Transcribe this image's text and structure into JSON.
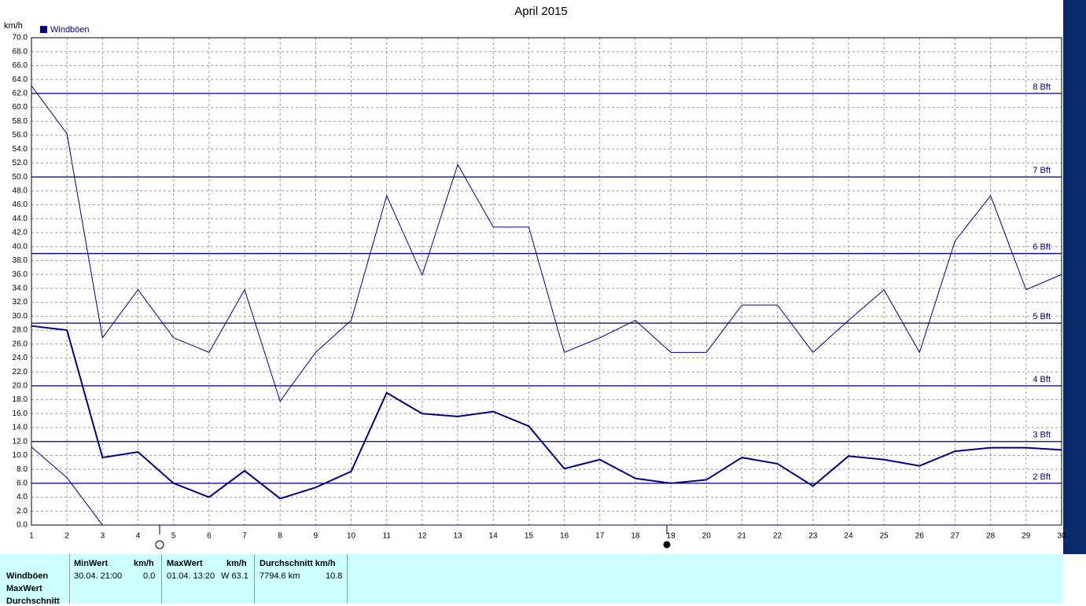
{
  "chart_data": {
    "type": "line",
    "title": "April 2015",
    "y_label": "km/h",
    "legend": "Windböen",
    "legend_color": "#000080",
    "x": [
      1,
      2,
      3,
      4,
      5,
      6,
      7,
      8,
      9,
      10,
      11,
      12,
      13,
      14,
      15,
      16,
      17,
      18,
      19,
      20,
      21,
      22,
      23,
      24,
      25,
      26,
      27,
      28,
      29,
      30
    ],
    "xlim": [
      1,
      30
    ],
    "xticks": [
      1,
      2,
      3,
      4,
      5,
      6,
      7,
      8,
      9,
      10,
      11,
      12,
      13,
      14,
      15,
      16,
      17,
      18,
      19,
      20,
      21,
      22,
      23,
      24,
      25,
      26,
      27,
      28,
      29,
      30
    ],
    "ylim": [
      0,
      70
    ],
    "yticks": [
      {
        "value": 0,
        "label": "0.0"
      },
      {
        "value": 2,
        "label": "2.0"
      },
      {
        "value": 4,
        "label": "4.0"
      },
      {
        "value": 6,
        "label": "6.0"
      },
      {
        "value": 8,
        "label": "8.0"
      },
      {
        "value": 10,
        "label": "10.0"
      },
      {
        "value": 12,
        "label": "12.0"
      },
      {
        "value": 14,
        "label": "14.0"
      },
      {
        "value": 16,
        "label": "16.0"
      },
      {
        "value": 18,
        "label": "18.0"
      },
      {
        "value": 20,
        "label": "20.0"
      },
      {
        "value": 22,
        "label": "22.0"
      },
      {
        "value": 24,
        "label": "24.0"
      },
      {
        "value": 26,
        "label": "26.0"
      },
      {
        "value": 28,
        "label": "28.0"
      },
      {
        "value": 30,
        "label": "30.0"
      },
      {
        "value": 32,
        "label": "32.0"
      },
      {
        "value": 34,
        "label": "34.0"
      },
      {
        "value": 36,
        "label": "36.0"
      },
      {
        "value": 38,
        "label": "38.0"
      },
      {
        "value": 40,
        "label": "40.0"
      },
      {
        "value": 42,
        "label": "42.0"
      },
      {
        "value": 44,
        "label": "44.0"
      },
      {
        "value": 46,
        "label": "46.0"
      },
      {
        "value": 48,
        "label": "48.0"
      },
      {
        "value": 50,
        "label": "50.0"
      },
      {
        "value": 52,
        "label": "52.0"
      },
      {
        "value": 54,
        "label": "54.0"
      },
      {
        "value": 56,
        "label": "56.0"
      },
      {
        "value": 58,
        "label": "58.0"
      },
      {
        "value": 60,
        "label": "60.0"
      },
      {
        "value": 62,
        "label": "62.0"
      },
      {
        "value": 64,
        "label": "64.0"
      },
      {
        "value": 66,
        "label": "66.0"
      },
      {
        "value": 68,
        "label": "68.0"
      },
      {
        "value": 70,
        "label": "70.0"
      }
    ],
    "grid": true,
    "series": [
      {
        "color": "#000080",
        "width": 1,
        "values": [
          63.1,
          56.2,
          26.9,
          33.8,
          26.9,
          24.8,
          33.8,
          17.8,
          24.8,
          29.4,
          47.3,
          35.9,
          51.8,
          42.8,
          42.8,
          24.8,
          26.9,
          29.4,
          24.8,
          24.8,
          31.6,
          31.6,
          24.8,
          29.4,
          33.8,
          24.8,
          40.8,
          47.3,
          33.8,
          36.0
        ]
      },
      {
        "color": "#000080",
        "width": 2,
        "values": [
          28.6,
          28.0,
          9.7,
          10.5,
          6.0,
          4.0,
          7.8,
          3.8,
          5.4,
          7.7,
          19.0,
          16.0,
          15.6,
          16.3,
          14.2,
          8.1,
          9.4,
          6.7,
          6.0,
          6.5,
          9.7,
          8.8,
          5.6,
          9.9,
          9.4,
          8.5,
          10.6,
          11.1,
          11.1,
          10.8
        ]
      },
      {
        "color": "#000080",
        "width": 1,
        "values": [
          11.2,
          6.8,
          0,
          0,
          0,
          0,
          0,
          0,
          0,
          0,
          0,
          0,
          0,
          0,
          0,
          0,
          0,
          0,
          0,
          0,
          0,
          0,
          0,
          0,
          0,
          0,
          0,
          0,
          0,
          0
        ]
      }
    ],
    "annotations": [
      {
        "value": 62,
        "label": "8 Bft"
      },
      {
        "value": 50,
        "label": "7 Bft"
      },
      {
        "value": 39,
        "label": "6 Bft"
      },
      {
        "value": 29,
        "label": "5 Bft"
      },
      {
        "value": 20,
        "label": "4 Bft"
      },
      {
        "value": 12,
        "label": "3 Bft"
      },
      {
        "value": 6,
        "label": "2 Bft"
      }
    ]
  },
  "table": {
    "row_labels": [
      "Windböen",
      "MaxWert",
      "Durchschnitt"
    ],
    "columns": [
      {
        "header": "MinWert",
        "unit": "km/h",
        "time": "30.04.  21:00",
        "value": "0.0"
      },
      {
        "header": "MaxWert",
        "unit": "km/h",
        "time": "01.04.  13:20",
        "value": "W 63.1"
      },
      {
        "header": "Durchschnitt km/h",
        "time": "7794.6 km",
        "value": "10.8"
      }
    ]
  }
}
